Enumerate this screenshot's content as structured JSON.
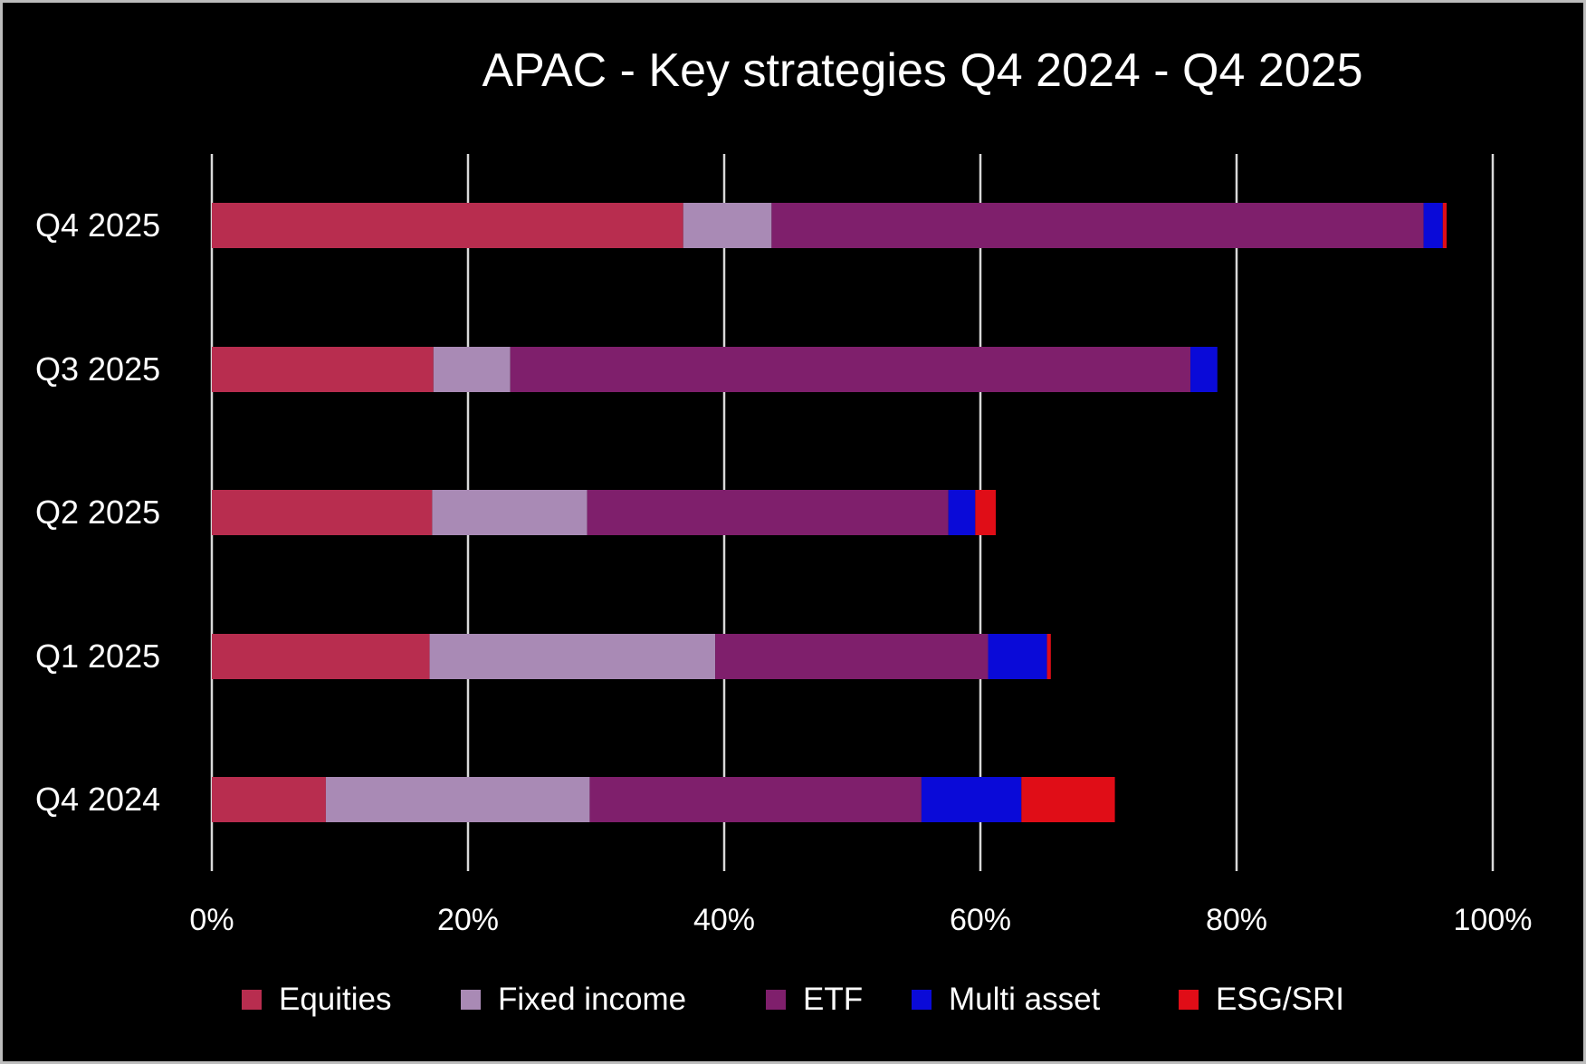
{
  "chart_data": {
    "type": "bar",
    "orientation": "horizontal",
    "stacked": true,
    "title": "APAC - Key strategies Q4 2024 - Q4 2025",
    "xlabel": "",
    "ylabel": "",
    "xlim": [
      0,
      100
    ],
    "x_ticks": [
      "0%",
      "20%",
      "40%",
      "60%",
      "80%",
      "100%"
    ],
    "x_tick_values": [
      0,
      20,
      40,
      60,
      80,
      100
    ],
    "grid": "vertical",
    "legend_position": "bottom",
    "categories": [
      "Q4 2025",
      "Q3 2025",
      "Q2 2025",
      "Q1 2025",
      "Q4 2024"
    ],
    "series": [
      {
        "name": "Equities",
        "color": "#b82d4f",
        "values": [
          36.8,
          17.3,
          17.2,
          17.0,
          8.9
        ]
      },
      {
        "name": "Fixed income",
        "color": "#a98ab5",
        "values": [
          6.9,
          6.0,
          12.1,
          22.3,
          20.6
        ]
      },
      {
        "name": "ETF",
        "color": "#7f1f6c",
        "values": [
          50.9,
          53.1,
          28.2,
          21.3,
          25.9
        ]
      },
      {
        "name": "Multi asset",
        "color": "#0a0ad8",
        "values": [
          1.5,
          2.1,
          2.1,
          4.6,
          7.8
        ]
      },
      {
        "name": "ESG/SRI",
        "color": "#e00d17",
        "values": [
          0.3,
          0.0,
          1.6,
          0.3,
          7.3
        ]
      }
    ]
  }
}
